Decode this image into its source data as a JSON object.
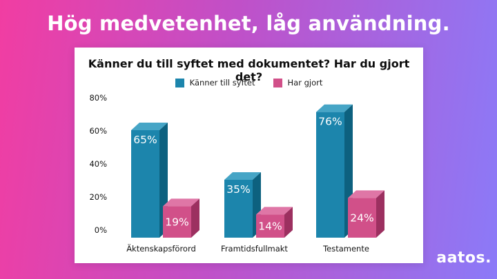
{
  "header": {
    "title": "Hög medvetenhet, låg användning."
  },
  "footer": {
    "logo": "aatos."
  },
  "colors": {
    "bg_gradient_left": "#f13da2",
    "bg_gradient_mid": "#c050c8",
    "bg_gradient_right": "#8b7af8",
    "card_bg": "#ffffff",
    "title_text": "#ffffff",
    "chart_text": "#0d0d0d",
    "teal_front": "#1c85ac",
    "teal_top": "#46a5c6",
    "teal_side": "#0d617f",
    "pink_front": "#d15089",
    "pink_top": "#df76a6",
    "pink_side": "#9c3060",
    "value_label_text": "#ffffff"
  },
  "chart_data": {
    "type": "bar",
    "style": "3d-column",
    "title": "Känner du till syftet med dokumentet? Har du gjort det?",
    "categories": [
      "Äktenskapsförord",
      "Framtidsfullmakt",
      "Testamente"
    ],
    "series": [
      {
        "name": "Känner till syftet",
        "values": [
          65,
          35,
          76
        ],
        "value_labels": [
          "65%",
          "35%",
          "76%"
        ],
        "color": "#1c85ac"
      },
      {
        "name": "Har gjort",
        "values": [
          19,
          14,
          24
        ],
        "value_labels": [
          "19%",
          "14%",
          "24%"
        ],
        "color": "#d15089"
      }
    ],
    "xlabel": "",
    "ylabel": "",
    "ylim": [
      0,
      80
    ],
    "yticks": [
      {
        "value": 0,
        "label": "0%"
      },
      {
        "value": 20,
        "label": "20%"
      },
      {
        "value": 40,
        "label": "40%"
      },
      {
        "value": 60,
        "label": "60%"
      },
      {
        "value": 80,
        "label": "80%"
      }
    ],
    "grid": false,
    "legend_position": "top"
  }
}
